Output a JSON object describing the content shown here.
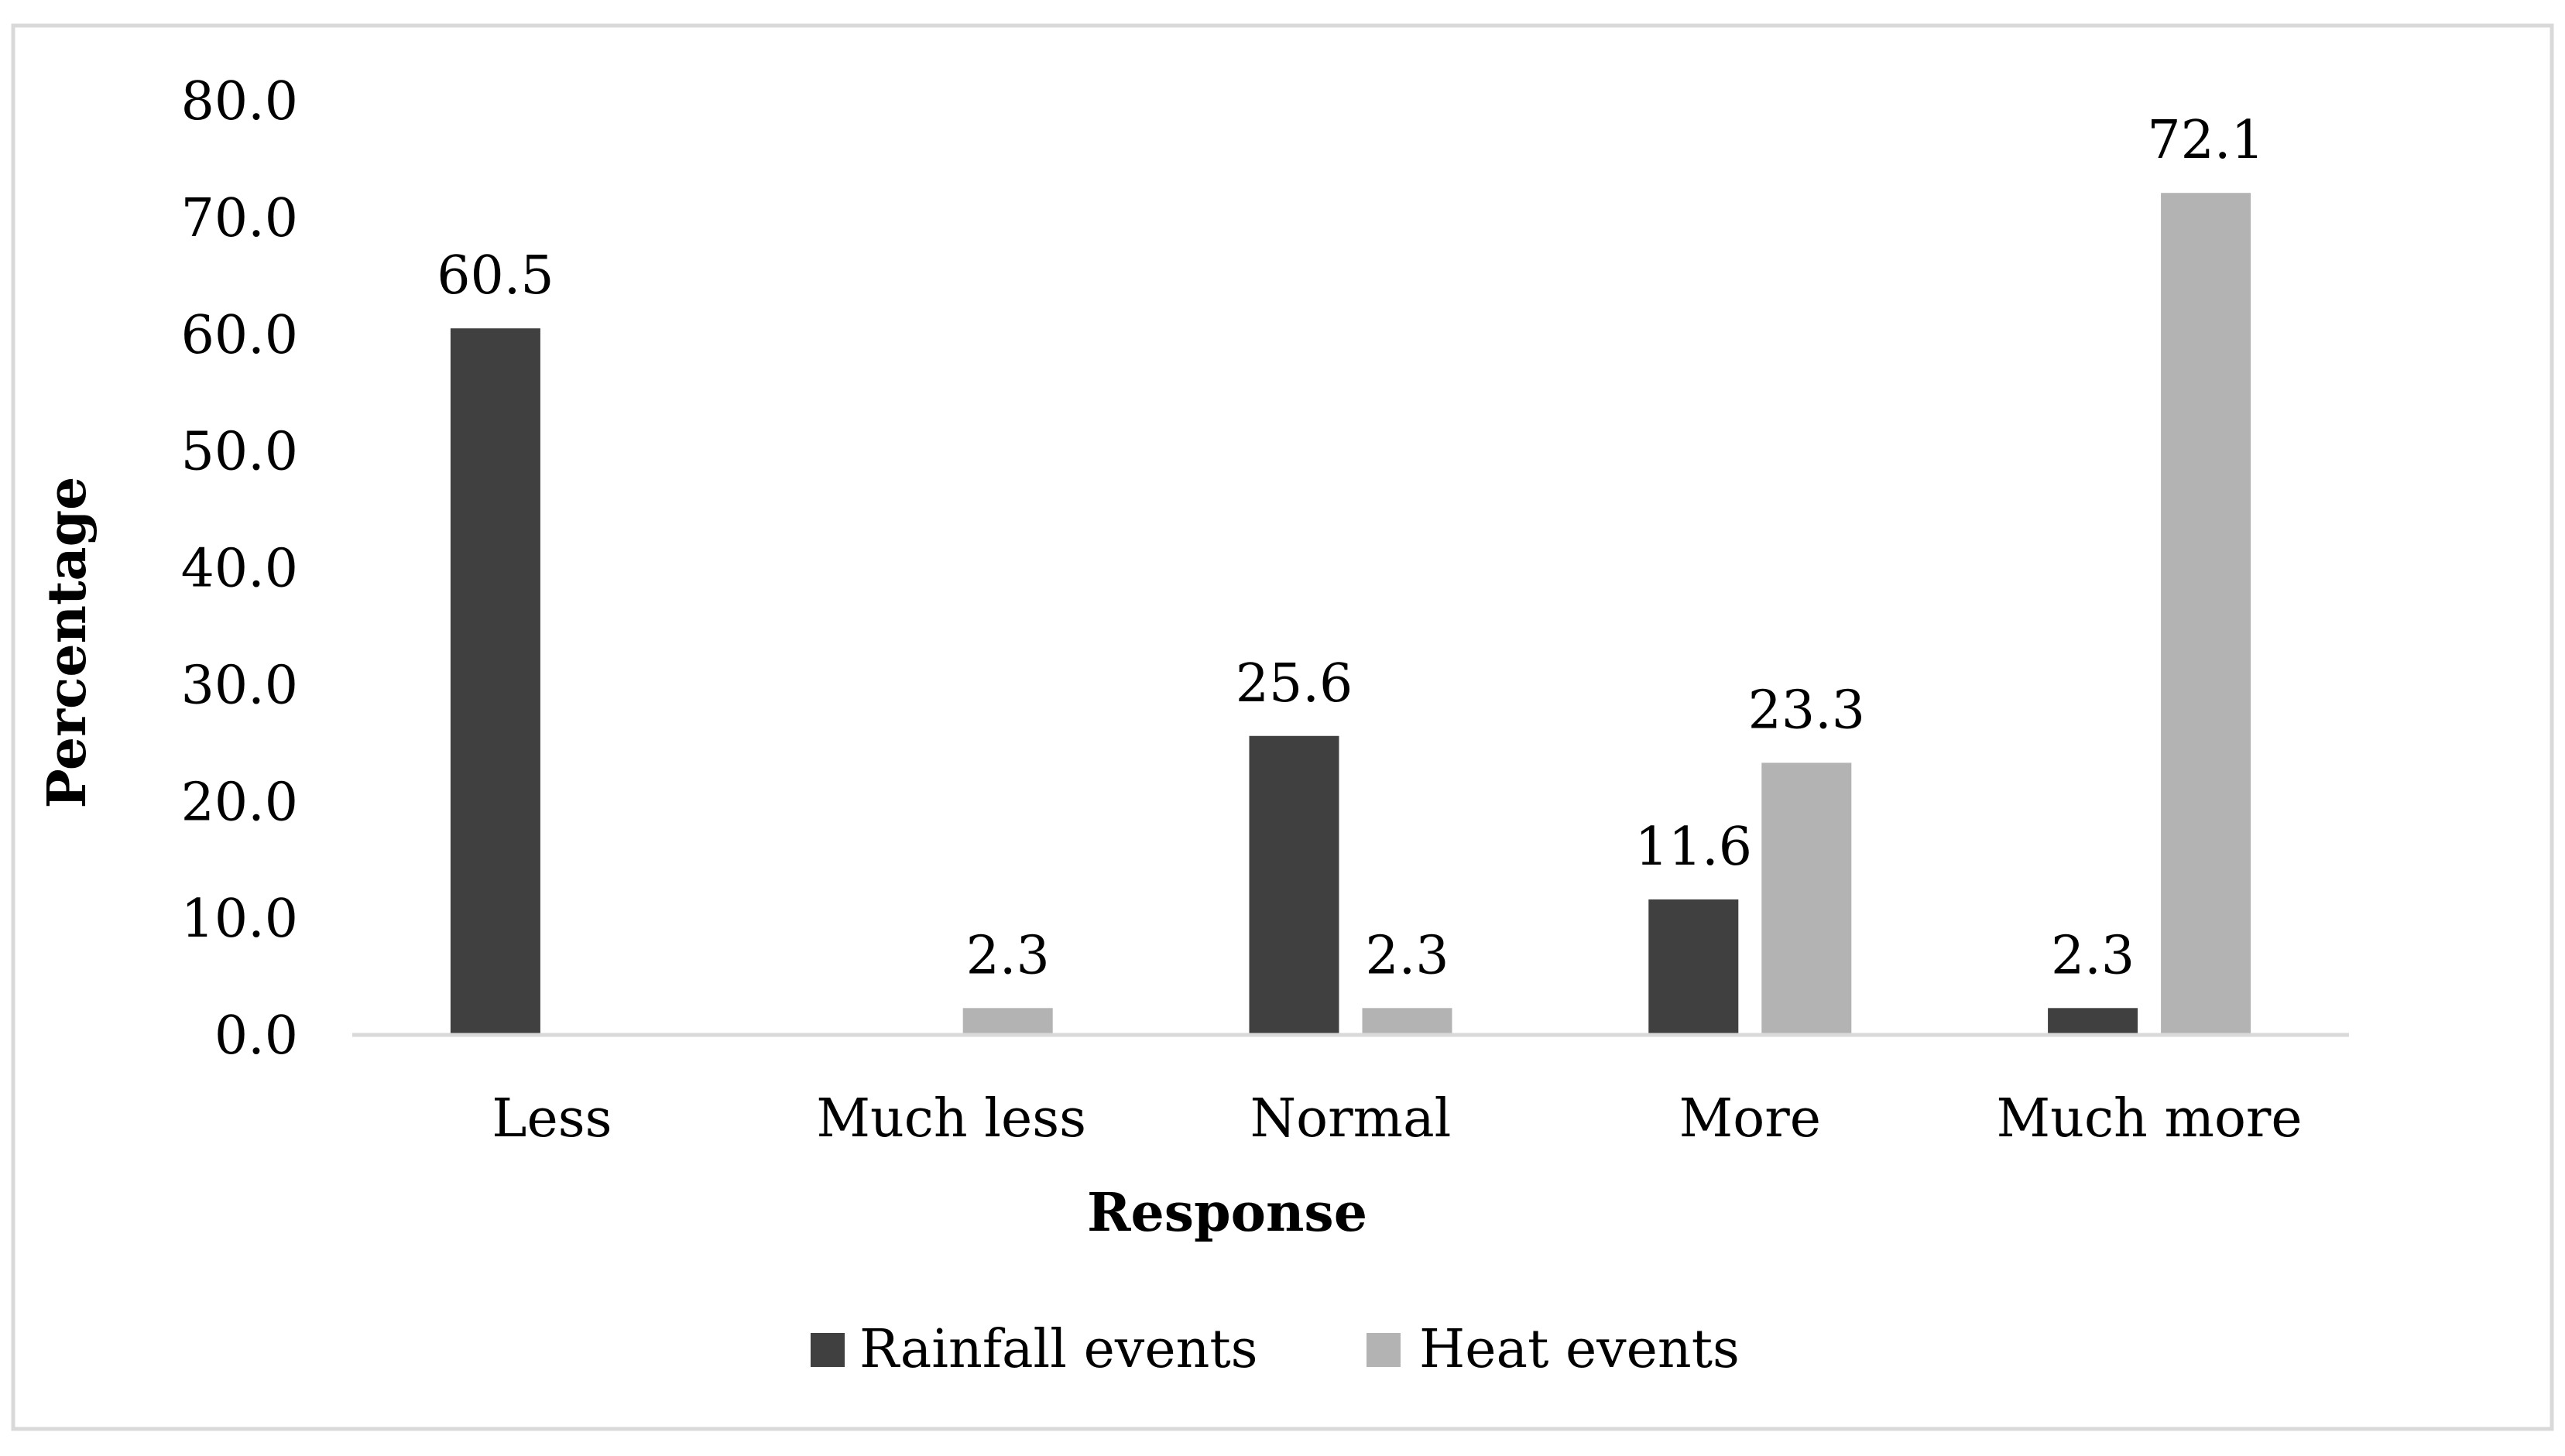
{
  "chart_data": {
    "type": "bar",
    "title": "",
    "xlabel": "Response",
    "ylabel": "Percentage",
    "ylim": [
      0,
      80
    ],
    "y_ticks": [
      "0.0",
      "10.0",
      "20.0",
      "30.0",
      "40.0",
      "50.0",
      "60.0",
      "70.0",
      "80.0"
    ],
    "grid": false,
    "legend_position": "bottom",
    "categories": [
      "Less",
      "Much less",
      "Normal",
      "More",
      "Much more"
    ],
    "series": [
      {
        "name": "Rainfall events",
        "color": "#404040",
        "values": [
          60.5,
          0,
          25.6,
          11.6,
          2.3
        ],
        "labels": [
          "60.5",
          "",
          "25.6",
          "11.6",
          "2.3"
        ]
      },
      {
        "name": "Heat events",
        "color": "#b3b3b3",
        "values": [
          0,
          2.3,
          2.3,
          23.3,
          72.1
        ],
        "labels": [
          "",
          "2.3",
          "2.3",
          "23.3",
          "72.1"
        ]
      }
    ]
  }
}
